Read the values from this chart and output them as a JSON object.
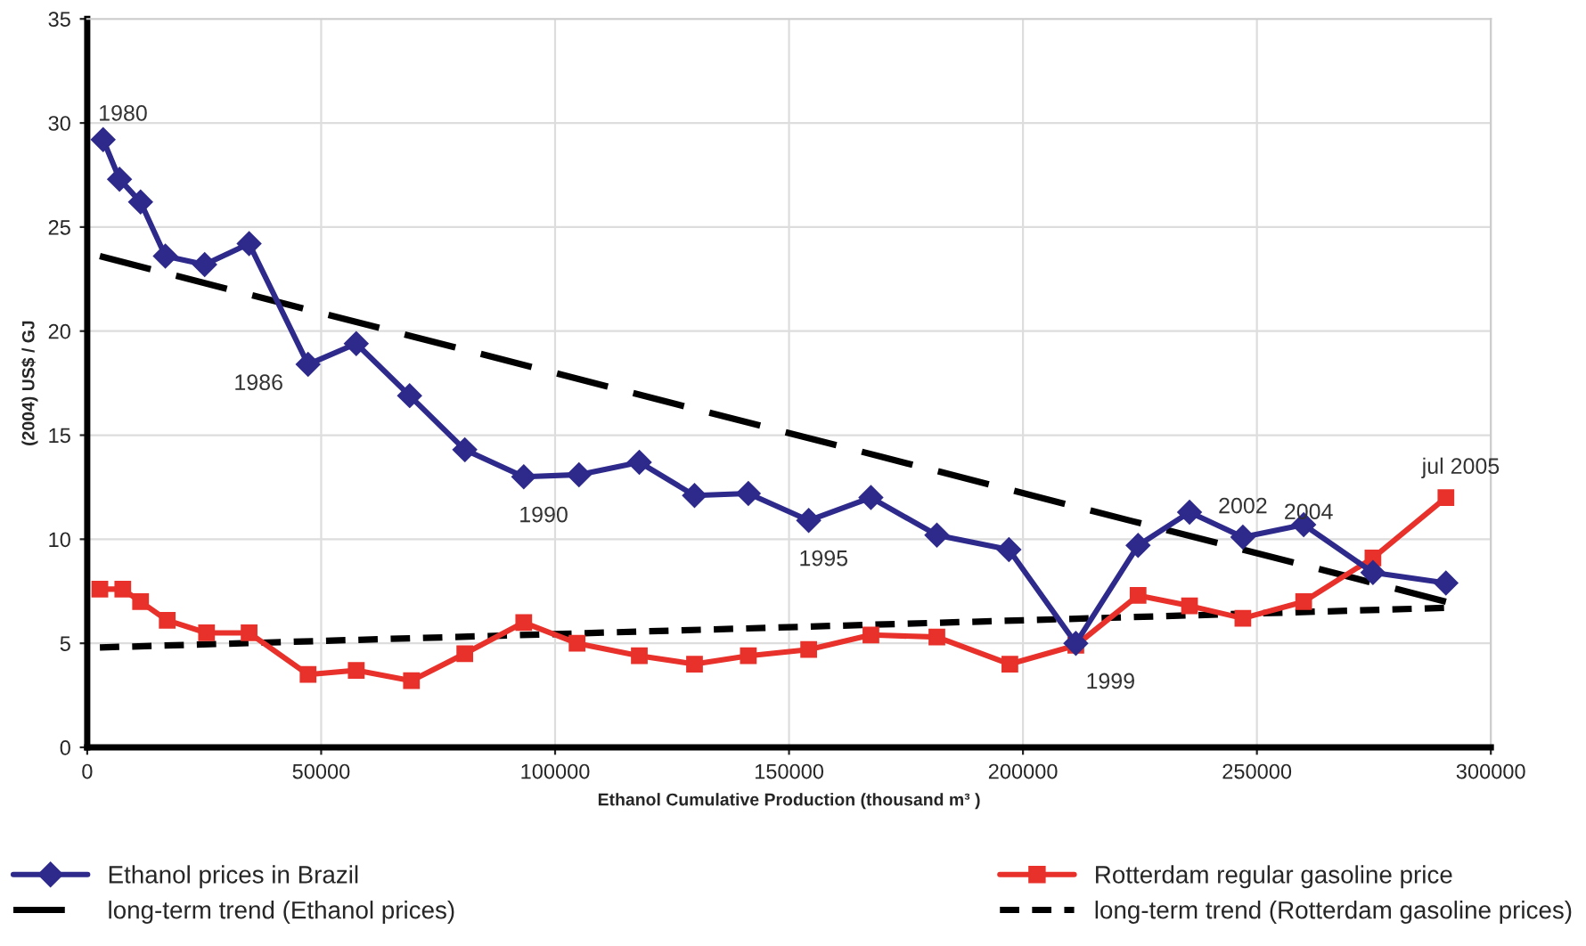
{
  "chart_data": {
    "type": "line",
    "xlabel": "Ethanol Cumulative Production (thousand m³ )",
    "ylabel": "(2004) US$ / GJ",
    "xlim": [
      0,
      300000
    ],
    "xticks": [
      0,
      50000,
      100000,
      150000,
      200000,
      250000,
      300000
    ],
    "ylim": [
      0,
      35
    ],
    "yticks": [
      0,
      5,
      10,
      15,
      20,
      25,
      30,
      35
    ],
    "grid": true,
    "legend": "bottom",
    "series": [
      {
        "name": "Ethanol prices in Brazil",
        "color": "#2e2a8c",
        "marker": "diamond",
        "line_style": "solid",
        "x": [
          3400,
          6900,
          11400,
          16700,
          25100,
          34600,
          47200,
          57500,
          68900,
          80700,
          93300,
          105100,
          118000,
          129800,
          141300,
          154200,
          167500,
          181600,
          197000,
          211300,
          224600,
          235600,
          247000,
          260000,
          274800,
          290400
        ],
        "values": [
          29.2,
          27.3,
          26.2,
          23.6,
          23.2,
          24.2,
          18.4,
          19.4,
          16.9,
          14.3,
          13.0,
          13.1,
          13.7,
          12.1,
          12.2,
          10.9,
          12.0,
          10.2,
          9.5,
          5.0,
          9.7,
          11.3,
          10.1,
          10.7,
          8.4,
          7.9
        ]
      },
      {
        "name": "Rotterdam regular gasoline price",
        "color": "#e8312a",
        "marker": "square",
        "line_style": "solid",
        "x": [
          2700,
          7600,
          11400,
          17100,
          25500,
          34600,
          47200,
          57500,
          69300,
          80700,
          93300,
          104700,
          118000,
          129800,
          141300,
          154200,
          167500,
          181600,
          197200,
          211300,
          224600,
          235600,
          247000,
          260000,
          274800,
          290400
        ],
        "values": [
          7.6,
          7.6,
          7.0,
          6.1,
          5.5,
          5.5,
          3.5,
          3.7,
          3.2,
          4.5,
          6.0,
          5.0,
          4.4,
          4.0,
          4.4,
          4.7,
          5.4,
          5.3,
          4.0,
          4.9,
          7.3,
          6.8,
          6.2,
          7.0,
          9.1,
          12.0
        ]
      },
      {
        "name": "long-term trend (Ethanol prices)",
        "color": "#000000",
        "marker": "none",
        "line_style": "dashed",
        "x": [
          2700,
          290400
        ],
        "values": [
          23.6,
          7.0
        ]
      },
      {
        "name": "long-term trend (Rotterdam gasoline prices)",
        "color": "#000000",
        "marker": "none",
        "line_style": "dotted",
        "x": [
          2700,
          290000
        ],
        "values": [
          4.8,
          6.7
        ]
      }
    ],
    "annotations": [
      {
        "text": "1980",
        "x": 3400,
        "y": 29.2
      },
      {
        "text": "1986",
        "x": 47200,
        "y": 18.4
      },
      {
        "text": "1990",
        "x": 93300,
        "y": 13.0
      },
      {
        "text": "1995",
        "x": 154200,
        "y": 10.9
      },
      {
        "text": "1999",
        "x": 211300,
        "y": 5.0
      },
      {
        "text": "2002",
        "x": 247000,
        "y": 10.1
      },
      {
        "text": "2004",
        "x": 274800,
        "y": 9.1
      },
      {
        "text": "jul 2005",
        "x": 290400,
        "y": 12.0
      }
    ]
  }
}
